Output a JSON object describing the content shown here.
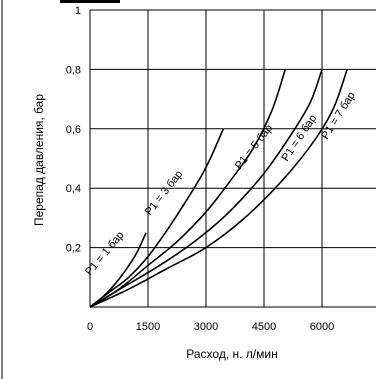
{
  "chart_data": {
    "type": "line",
    "title": "",
    "xlabel": "Расход, н. л/мин",
    "ylabel": "Перепад давления, бар",
    "xlim": [
      0,
      7500
    ],
    "ylim": [
      0,
      1
    ],
    "x_ticks": [
      "0",
      "1500",
      "3000",
      "4500",
      "6000"
    ],
    "y_ticks": [
      "0,2",
      "0,4",
      "0,6",
      "0,8",
      "1"
    ],
    "grid": true,
    "series": [
      {
        "name": "P1 = 1 бар",
        "points": [
          [
            0,
            0
          ],
          [
            300,
            0.03
          ],
          [
            600,
            0.07
          ],
          [
            900,
            0.12
          ],
          [
            1200,
            0.18
          ],
          [
            1450,
            0.25
          ]
        ]
      },
      {
        "name": "P1 = 3 бар",
        "points": [
          [
            0,
            0
          ],
          [
            500,
            0.05
          ],
          [
            1000,
            0.1
          ],
          [
            1500,
            0.17
          ],
          [
            2000,
            0.26
          ],
          [
            2500,
            0.36
          ],
          [
            3000,
            0.47
          ],
          [
            3450,
            0.6
          ]
        ]
      },
      {
        "name": "P1 = 5 бар",
        "points": [
          [
            0,
            0
          ],
          [
            750,
            0.06
          ],
          [
            1500,
            0.14
          ],
          [
            2250,
            0.22
          ],
          [
            3000,
            0.32
          ],
          [
            3600,
            0.42
          ],
          [
            4200,
            0.53
          ],
          [
            4700,
            0.66
          ],
          [
            5050,
            0.8
          ]
        ]
      },
      {
        "name": "P1 = 6 бар",
        "points": [
          [
            0,
            0
          ],
          [
            900,
            0.07
          ],
          [
            1800,
            0.14
          ],
          [
            2700,
            0.22
          ],
          [
            3600,
            0.32
          ],
          [
            4500,
            0.45
          ],
          [
            5200,
            0.58
          ],
          [
            5700,
            0.69
          ],
          [
            6000,
            0.8
          ]
        ]
      },
      {
        "name": "P1 = 7 бар",
        "points": [
          [
            0,
            0
          ],
          [
            1000,
            0.06
          ],
          [
            2000,
            0.13
          ],
          [
            3000,
            0.2
          ],
          [
            4000,
            0.3
          ],
          [
            5000,
            0.43
          ],
          [
            5800,
            0.56
          ],
          [
            6300,
            0.67
          ],
          [
            6650,
            0.8
          ]
        ]
      }
    ]
  }
}
